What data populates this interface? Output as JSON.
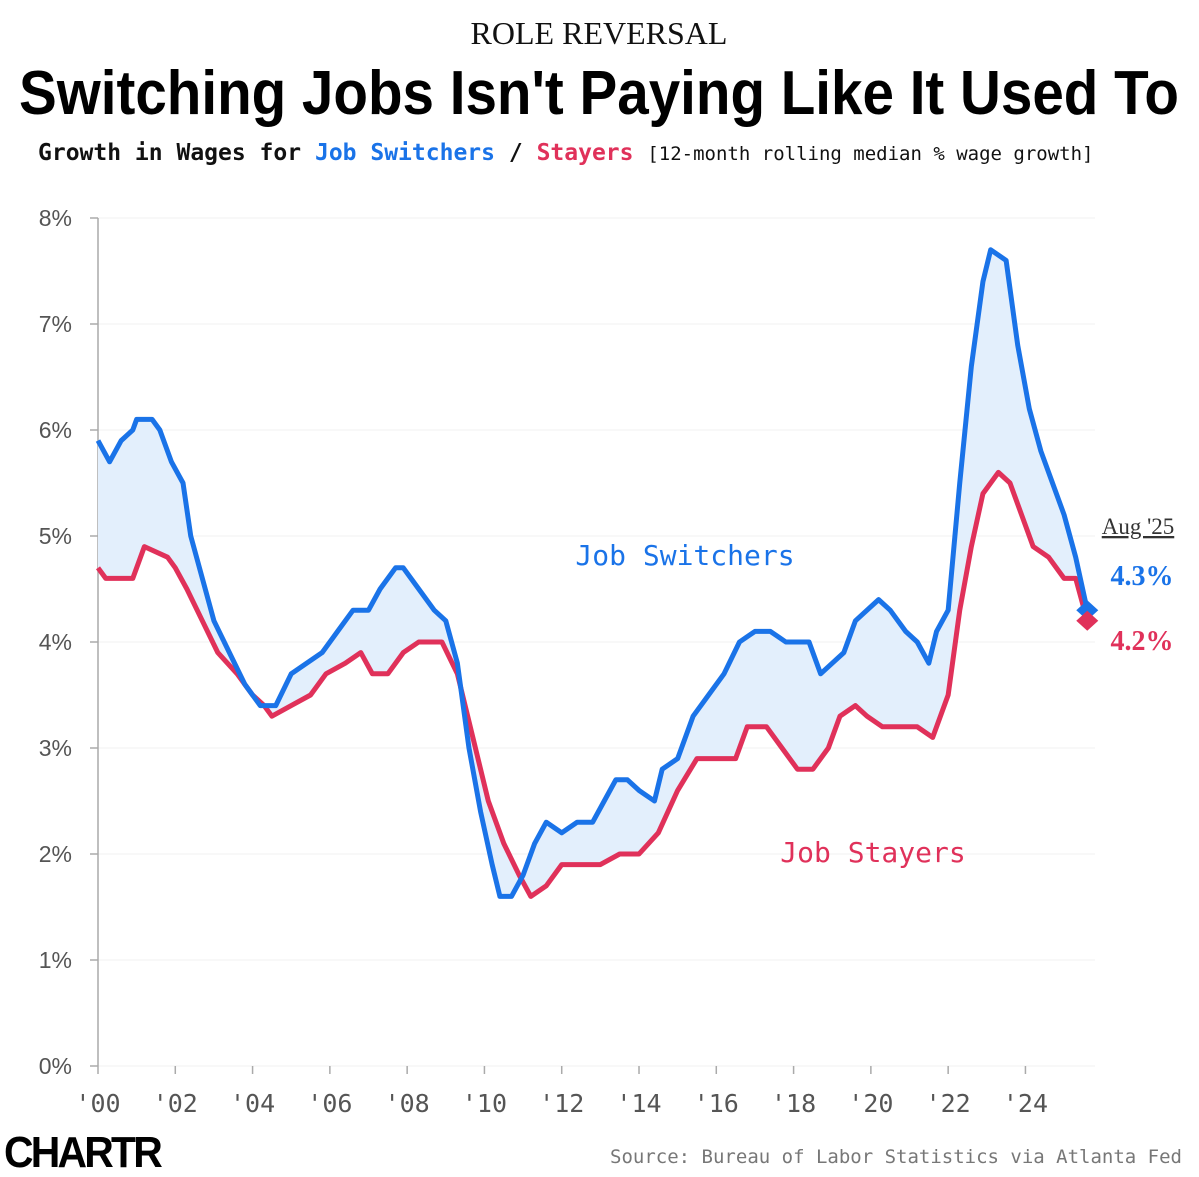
{
  "chart_data": {
    "type": "line",
    "kicker": "ROLE REVERSAL",
    "title": "Switching Jobs Isn't Paying Like It Used To",
    "subtitle_parts": [
      "Growth in Wages for",
      "Job Switchers",
      "/",
      "Stayers",
      "[12-month rolling median % wage growth]"
    ],
    "end_date_label": "Aug '25",
    "source": "Source: Bureau of Labor Statistics via Atlanta Fed",
    "logo": "CHARTR",
    "xlim": [
      2000,
      2025.8
    ],
    "xticks": [
      {
        "value": 2000,
        "label": "'00"
      },
      {
        "value": 2002,
        "label": "'02"
      },
      {
        "value": 2004,
        "label": "'04"
      },
      {
        "value": 2006,
        "label": "'06"
      },
      {
        "value": 2008,
        "label": "'08"
      },
      {
        "value": 2010,
        "label": "'10"
      },
      {
        "value": 2012,
        "label": "'12"
      },
      {
        "value": 2014,
        "label": "'14"
      },
      {
        "value": 2016,
        "label": "'16"
      },
      {
        "value": 2018,
        "label": "'18"
      },
      {
        "value": 2020,
        "label": "'20"
      },
      {
        "value": 2022,
        "label": "'22"
      },
      {
        "value": 2024,
        "label": "'24"
      }
    ],
    "ylim": [
      0,
      8
    ],
    "yticks": [
      {
        "value": 0,
        "label": "0%"
      },
      {
        "value": 1,
        "label": "1%"
      },
      {
        "value": 2,
        "label": "2%"
      },
      {
        "value": 3,
        "label": "3%"
      },
      {
        "value": 4,
        "label": "4%"
      },
      {
        "value": 5,
        "label": "5%"
      },
      {
        "value": 6,
        "label": "6%"
      },
      {
        "value": 7,
        "label": "7%"
      },
      {
        "value": 8,
        "label": "8%"
      }
    ],
    "grid": true,
    "fill_between": "#e3effc",
    "series": [
      {
        "name": "Job Switchers",
        "color": "#1a73e8",
        "end_value_label": "4.3%",
        "x": [
          2000.0,
          2000.3,
          2000.6,
          2000.9,
          2001.0,
          2001.4,
          2001.6,
          2001.9,
          2002.2,
          2002.4,
          2002.7,
          2003.0,
          2003.4,
          2003.8,
          2004.2,
          2004.6,
          2005.0,
          2005.4,
          2005.8,
          2006.2,
          2006.6,
          2007.0,
          2007.3,
          2007.7,
          2007.9,
          2008.3,
          2008.7,
          2009.0,
          2009.3,
          2009.6,
          2009.9,
          2010.2,
          2010.4,
          2010.7,
          2011.0,
          2011.3,
          2011.6,
          2012.0,
          2012.4,
          2012.8,
          2013.1,
          2013.4,
          2013.7,
          2014.0,
          2014.4,
          2014.6,
          2015.0,
          2015.4,
          2015.8,
          2016.2,
          2016.6,
          2017.0,
          2017.4,
          2017.8,
          2018.4,
          2018.7,
          2019.0,
          2019.3,
          2019.6,
          2019.9,
          2020.2,
          2020.5,
          2020.9,
          2021.2,
          2021.5,
          2021.7,
          2022.0,
          2022.3,
          2022.6,
          2022.9,
          2023.1,
          2023.5,
          2023.8,
          2024.1,
          2024.4,
          2024.7,
          2025.0,
          2025.3,
          2025.6
        ],
        "values": [
          5.9,
          5.7,
          5.9,
          6.0,
          6.1,
          6.1,
          6.0,
          5.7,
          5.5,
          5.0,
          4.6,
          4.2,
          3.9,
          3.6,
          3.4,
          3.4,
          3.7,
          3.8,
          3.9,
          4.1,
          4.3,
          4.3,
          4.5,
          4.7,
          4.7,
          4.5,
          4.3,
          4.2,
          3.8,
          3.0,
          2.4,
          1.9,
          1.6,
          1.6,
          1.8,
          2.1,
          2.3,
          2.2,
          2.3,
          2.3,
          2.5,
          2.7,
          2.7,
          2.6,
          2.5,
          2.8,
          2.9,
          3.3,
          3.5,
          3.7,
          4.0,
          4.1,
          4.1,
          4.0,
          4.0,
          3.7,
          3.8,
          3.9,
          4.2,
          4.3,
          4.4,
          4.3,
          4.1,
          4.0,
          3.8,
          4.1,
          4.3,
          5.5,
          6.6,
          7.4,
          7.7,
          7.6,
          6.8,
          6.2,
          5.8,
          5.5,
          5.2,
          4.8,
          4.3
        ]
      },
      {
        "name": "Job Stayers",
        "color": "#e0315a",
        "end_value_label": "4.2%",
        "x": [
          2000.0,
          2000.2,
          2000.9,
          2001.2,
          2001.8,
          2002.0,
          2002.3,
          2002.7,
          2003.1,
          2003.6,
          2004.0,
          2004.3,
          2004.5,
          2005.0,
          2005.5,
          2005.9,
          2006.4,
          2006.8,
          2007.1,
          2007.5,
          2007.9,
          2008.3,
          2008.9,
          2009.3,
          2009.7,
          2010.1,
          2010.5,
          2010.9,
          2011.2,
          2011.6,
          2012.0,
          2012.5,
          2013.0,
          2013.5,
          2014.0,
          2014.5,
          2015.0,
          2015.5,
          2016.0,
          2016.5,
          2016.8,
          2017.3,
          2017.7,
          2018.1,
          2018.5,
          2018.9,
          2019.2,
          2019.6,
          2019.9,
          2020.3,
          2020.8,
          2021.2,
          2021.6,
          2022.0,
          2022.3,
          2022.6,
          2022.9,
          2023.3,
          2023.6,
          2023.9,
          2024.2,
          2024.6,
          2025.0,
          2025.3,
          2025.6
        ],
        "values": [
          4.7,
          4.6,
          4.6,
          4.9,
          4.8,
          4.7,
          4.5,
          4.2,
          3.9,
          3.7,
          3.5,
          3.4,
          3.3,
          3.4,
          3.5,
          3.7,
          3.8,
          3.9,
          3.7,
          3.7,
          3.9,
          4.0,
          4.0,
          3.7,
          3.1,
          2.5,
          2.1,
          1.8,
          1.6,
          1.7,
          1.9,
          1.9,
          1.9,
          2.0,
          2.0,
          2.2,
          2.6,
          2.9,
          2.9,
          2.9,
          3.2,
          3.2,
          3.0,
          2.8,
          2.8,
          3.0,
          3.3,
          3.4,
          3.3,
          3.2,
          3.2,
          3.2,
          3.1,
          3.5,
          4.3,
          4.9,
          5.4,
          5.6,
          5.5,
          5.2,
          4.9,
          4.8,
          4.6,
          4.6,
          4.2
        ]
      }
    ]
  }
}
